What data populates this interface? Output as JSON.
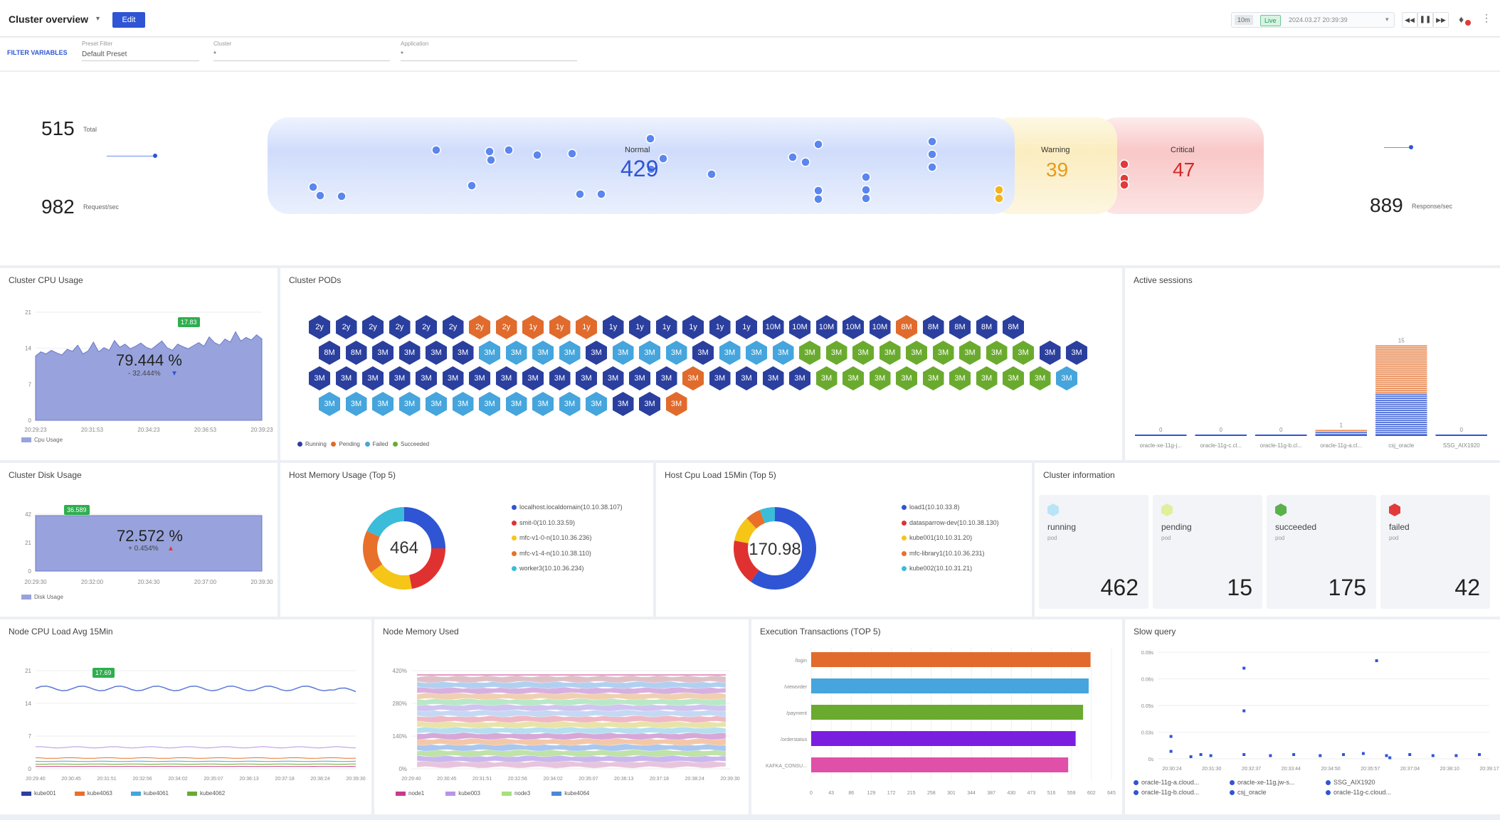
{
  "header": {
    "title": "Cluster overview",
    "edit_label": "Edit",
    "range_label": "10m",
    "live_label": "Live",
    "datetime": "2024.03.27 20:39:39"
  },
  "filter": {
    "label": "FILTER VARIABLES",
    "preset": {
      "label": "Preset Filter",
      "value": "Default Preset"
    },
    "cluster": {
      "label": "Cluster",
      "value": "*"
    },
    "application": {
      "label": "Application",
      "value": "*"
    }
  },
  "flow": {
    "total": "515",
    "total_label": "Total",
    "requests": "982",
    "requests_label": "Request/sec",
    "normal_label": "Normal",
    "normal": "429",
    "warning_label": "Warning",
    "warning": "39",
    "critical_label": "Critical",
    "critical": "47",
    "response": "889",
    "response_label": "Response/sec"
  },
  "colors": {
    "running": "#2a3f9e",
    "pending": "#e06b2c",
    "failed": "#45a5dc",
    "succeeded": "#6aab2f",
    "area": "#98a3dd"
  },
  "cpu": {
    "title": "Cluster CPU Usage",
    "value": "79.444 %",
    "delta": "- 32.444%",
    "badge": "17.83",
    "yticks": [
      "21",
      "14",
      "7",
      "0"
    ],
    "xticks": [
      "20:29:23",
      "20:31:53",
      "20:34:23",
      "20:36:53",
      "20:39:23"
    ],
    "legend": "Cpu Usage"
  },
  "pods": {
    "title": "Cluster PODs",
    "legend": [
      "Running",
      "Pending",
      "Failed",
      "Succeeded"
    ],
    "rows": [
      [
        [
          "2y",
          "r"
        ],
        [
          "2y",
          "r"
        ],
        [
          "2y",
          "r"
        ],
        [
          "2y",
          "r"
        ],
        [
          "2y",
          "r"
        ],
        [
          "2y",
          "r"
        ],
        [
          "2y",
          "p"
        ],
        [
          "2y",
          "p"
        ],
        [
          "1y",
          "p"
        ],
        [
          "1y",
          "p"
        ],
        [
          "1y",
          "p"
        ],
        [
          "1y",
          "r"
        ],
        [
          "1y",
          "r"
        ],
        [
          "1y",
          "r"
        ],
        [
          "1y",
          "r"
        ],
        [
          "1y",
          "r"
        ],
        [
          "1y",
          "r"
        ],
        [
          "10M",
          "r"
        ],
        [
          "10M",
          "r"
        ],
        [
          "10M",
          "r"
        ],
        [
          "10M",
          "r"
        ],
        [
          "10M",
          "r"
        ],
        [
          "8M",
          "p"
        ],
        [
          "8M",
          "r"
        ],
        [
          "8M",
          "r"
        ],
        [
          "8M",
          "r"
        ],
        [
          "8M",
          "r"
        ]
      ],
      [
        [
          "8M",
          "r"
        ],
        [
          "8M",
          "r"
        ],
        [
          "3M",
          "r"
        ],
        [
          "3M",
          "r"
        ],
        [
          "3M",
          "r"
        ],
        [
          "3M",
          "r"
        ],
        [
          "3M",
          "f"
        ],
        [
          "3M",
          "f"
        ],
        [
          "3M",
          "f"
        ],
        [
          "3M",
          "f"
        ],
        [
          "3M",
          "r"
        ],
        [
          "3M",
          "f"
        ],
        [
          "3M",
          "f"
        ],
        [
          "3M",
          "f"
        ],
        [
          "3M",
          "r"
        ],
        [
          "3M",
          "f"
        ],
        [
          "3M",
          "f"
        ],
        [
          "3M",
          "f"
        ],
        [
          "3M",
          "s"
        ],
        [
          "3M",
          "s"
        ],
        [
          "3M",
          "s"
        ],
        [
          "3M",
          "s"
        ],
        [
          "3M",
          "s"
        ],
        [
          "3M",
          "s"
        ],
        [
          "3M",
          "s"
        ],
        [
          "3M",
          "s"
        ],
        [
          "3M",
          "s"
        ],
        [
          "3M",
          "r"
        ],
        [
          "3M",
          "r"
        ]
      ],
      [
        [
          "3M",
          "r"
        ],
        [
          "3M",
          "r"
        ],
        [
          "3M",
          "r"
        ],
        [
          "3M",
          "r"
        ],
        [
          "3M",
          "r"
        ],
        [
          "3M",
          "r"
        ],
        [
          "3M",
          "r"
        ],
        [
          "3M",
          "r"
        ],
        [
          "3M",
          "r"
        ],
        [
          "3M",
          "r"
        ],
        [
          "3M",
          "r"
        ],
        [
          "3M",
          "r"
        ],
        [
          "3M",
          "r"
        ],
        [
          "3M",
          "r"
        ],
        [
          "3M",
          "p"
        ],
        [
          "3M",
          "r"
        ],
        [
          "3M",
          "r"
        ],
        [
          "3M",
          "r"
        ],
        [
          "3M",
          "r"
        ],
        [
          "3M",
          "s"
        ],
        [
          "3M",
          "s"
        ],
        [
          "3M",
          "s"
        ],
        [
          "3M",
          "s"
        ],
        [
          "3M",
          "s"
        ],
        [
          "3M",
          "s"
        ],
        [
          "3M",
          "s"
        ],
        [
          "3M",
          "s"
        ],
        [
          "3M",
          "s"
        ],
        [
          "3M",
          "f"
        ]
      ],
      [
        [
          "3M",
          "f"
        ],
        [
          "3M",
          "f"
        ],
        [
          "3M",
          "f"
        ],
        [
          "3M",
          "f"
        ],
        [
          "3M",
          "f"
        ],
        [
          "3M",
          "f"
        ],
        [
          "3M",
          "f"
        ],
        [
          "3M",
          "f"
        ],
        [
          "3M",
          "f"
        ],
        [
          "3M",
          "f"
        ],
        [
          "3M",
          "f"
        ],
        [
          "3M",
          "r"
        ],
        [
          "3M",
          "r"
        ],
        [
          "3M",
          "p"
        ]
      ]
    ]
  },
  "sessions": {
    "title": "Active sessions",
    "values": [
      0,
      0,
      0,
      1,
      15,
      0
    ],
    "labels": [
      "oracle-xe-11g-j...",
      "oracle-11g-c.cl...",
      "oracle-11g-b.cl...",
      "oracle-11g-a.cl...",
      "csj_oracle",
      "SSG_AIX1920"
    ]
  },
  "disk": {
    "title": "Cluster Disk Usage",
    "value": "72.572 %",
    "delta": "+ 0.454%",
    "badge": "36.589",
    "yticks": [
      "42",
      "21",
      "0"
    ],
    "xticks": [
      "20:29:30",
      "20:32:00",
      "20:34:30",
      "20:37:00",
      "20:39:30"
    ],
    "legend": "Disk Usage"
  },
  "hostmem": {
    "title": "Host Memory Usage (Top 5)",
    "center": "464",
    "items": [
      "localhost.localdomain(10.10.38.107)",
      "smit-0(10.10.33.59)",
      "mfc-v1-0-n(10.10.36.236)",
      "mfc-v1-4-n(10.10.38.110)",
      "worker3(10.10.36.234)"
    ],
    "slices": [
      25,
      22,
      18,
      17,
      18
    ],
    "colors": [
      "#2f55d4",
      "#e03131",
      "#f5c518",
      "#e8702a",
      "#3bbcd9"
    ]
  },
  "hostcpu": {
    "title": "Host Cpu Load 15Min (Top 5)",
    "center": "170.98",
    "items": [
      "load1(10.10.33.8)",
      "datasparrow-dev(10.10.38.130)",
      "kube001(10.10.31.20)",
      "mfc-library1(10.10.36.231)",
      "kube002(10.10.31.21)"
    ],
    "slices": [
      60,
      18,
      10,
      6,
      6
    ],
    "colors": [
      "#2f55d4",
      "#e03131",
      "#f5c518",
      "#e8702a",
      "#3bbcd9"
    ]
  },
  "clusterinfo": {
    "title": "Cluster information",
    "cards": [
      {
        "label": "running",
        "sub": "pod",
        "value": "462",
        "color": "#b9e4f7"
      },
      {
        "label": "pending",
        "sub": "pod",
        "value": "15",
        "color": "#e0ef9c"
      },
      {
        "label": "succeeded",
        "sub": "pod",
        "value": "175",
        "color": "#5ab04a"
      },
      {
        "label": "failed",
        "sub": "pod",
        "value": "42",
        "color": "#e23a3a"
      }
    ]
  },
  "nodecpu": {
    "title": "Node CPU Load Avg 15Min",
    "badge": "17.69",
    "yticks": [
      "21",
      "14",
      "7",
      "0"
    ],
    "xticks": [
      "20:29:40",
      "20:30:45",
      "20:31:51",
      "20:32:56",
      "20:34:02",
      "20:35:07",
      "20:36:13",
      "20:37:18",
      "20:38:24",
      "20:39:30"
    ],
    "legend": [
      "kube001",
      "kube4063",
      "kube4061",
      "kube4062"
    ],
    "legend_colors": [
      "#2a3f9e",
      "#e8702a",
      "#45a5dc",
      "#6aab2f"
    ]
  },
  "nodemem": {
    "title": "Node Memory Used",
    "yticks": [
      "420%",
      "280%",
      "140%",
      "0%"
    ],
    "xticks": [
      "20:29:40",
      "20:30:45",
      "20:31:51",
      "20:32:56",
      "20:34:02",
      "20:35:07",
      "20:36:13",
      "20:37:18",
      "20:38:24",
      "20:39:30"
    ],
    "legend": [
      "node1",
      "kube003",
      "node3",
      "kube4064"
    ],
    "legend_colors": [
      "#c83a8a",
      "#b894e6",
      "#a7e07a",
      "#4a8ad8"
    ]
  },
  "exec": {
    "title": "Execution Transactions (TOP 5)",
    "categories": [
      "/login",
      "/viewsrder",
      "/payment",
      "/orderstatus",
      "KAFKA_CONSU..."
    ],
    "values": [
      600,
      596,
      584,
      568,
      552
    ],
    "colors": [
      "#e06b2c",
      "#45a5dc",
      "#6aab2f",
      "#7a1fe0",
      "#e04fa8"
    ],
    "xticks": [
      "0",
      "43",
      "86",
      "129",
      "172",
      "215",
      "258",
      "301",
      "344",
      "387",
      "430",
      "473",
      "516",
      "559",
      "602",
      "645"
    ]
  },
  "slow": {
    "title": "Slow query",
    "yticks": [
      "0.09s",
      "0.06s",
      "0.05s",
      "0.03s",
      "0s"
    ],
    "xticks": [
      "20:30:24",
      "20:31:30",
      "20:32:37",
      "20:33:44",
      "20:34:50",
      "20:35:57",
      "20:37:04",
      "20:38:10",
      "20:39:17"
    ],
    "legend": [
      "oracle-11g-a.cloud...",
      "oracle-xe-11g.jw-s...",
      "SSG_AIX1920",
      "oracle-11g-b.cloud...",
      "csj_oracle",
      "oracle-11g-c.cloud..."
    ]
  }
}
